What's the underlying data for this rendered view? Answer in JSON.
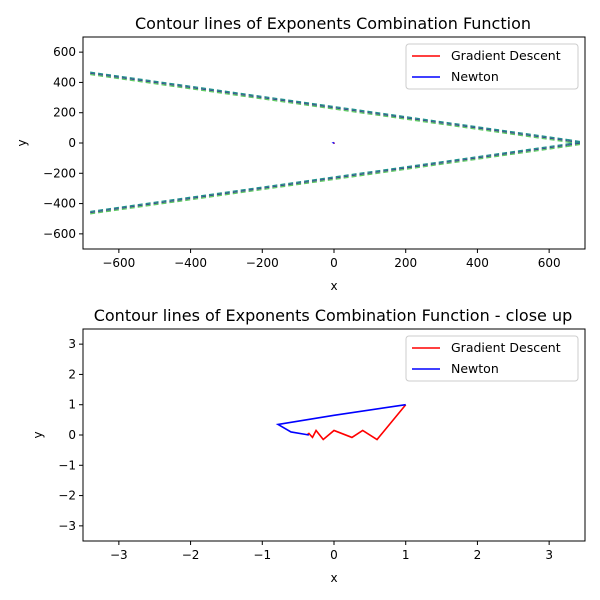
{
  "chart_data": [
    {
      "type": "line",
      "title": "Contour lines of Exponents Combination Function",
      "xlabel": "x",
      "ylabel": "y",
      "xlim": [
        -700,
        700
      ],
      "ylim": [
        -700,
        700
      ],
      "xticks": [
        -600,
        -400,
        -200,
        0,
        200,
        400,
        600
      ],
      "yticks": [
        -600,
        -400,
        -200,
        0,
        200,
        400,
        600
      ],
      "legend_position": "top-right",
      "contours": {
        "colors": [
          "#21918c",
          "#3b528b",
          "#5ec962"
        ],
        "style": "dashed",
        "lines": [
          [
            [
              -680,
              460
            ],
            [
              650,
              15
            ]
          ],
          [
            [
              -680,
              -460
            ],
            [
              650,
              -15
            ]
          ],
          [
            [
              650,
              15
            ],
            [
              690,
              0
            ]
          ],
          [
            [
              650,
              -15
            ],
            [
              690,
              0
            ]
          ]
        ]
      },
      "series": [
        {
          "name": "Gradient Descent",
          "color": "#ff0000",
          "x": [
            1.0,
            0.6,
            0.4,
            0.25,
            0.0,
            -0.15,
            -0.25,
            -0.32,
            -0.38
          ],
          "y": [
            1.0,
            -0.15,
            0.15,
            -0.08,
            0.15,
            -0.15,
            0.15,
            -0.05,
            0.02
          ]
        },
        {
          "name": "Newton",
          "color": "#0000ff",
          "x": [
            1.0,
            0.0,
            -0.75,
            -0.6,
            -0.4,
            -0.35
          ],
          "y": [
            1.0,
            0.65,
            0.35,
            0.1,
            0.02,
            0.0
          ]
        }
      ]
    },
    {
      "type": "line",
      "title": "Contour lines of Exponents Combination Function - close up",
      "xlabel": "x",
      "ylabel": "y",
      "xlim": [
        -3.5,
        3.5
      ],
      "ylim": [
        -3.5,
        3.5
      ],
      "xticks": [
        -3,
        -2,
        -1,
        0,
        1,
        2,
        3
      ],
      "yticks": [
        -3,
        -2,
        -1,
        0,
        1,
        2,
        3
      ],
      "legend_position": "top-right",
      "series": [
        {
          "name": "Gradient Descent",
          "color": "#ff0000",
          "x": [
            1.0,
            0.6,
            0.4,
            0.25,
            0.0,
            -0.15,
            -0.25,
            -0.3,
            -0.35,
            -0.38
          ],
          "y": [
            1.0,
            -0.15,
            0.15,
            -0.08,
            0.15,
            -0.15,
            0.15,
            -0.08,
            0.05,
            0.0
          ]
        },
        {
          "name": "Newton",
          "color": "#0000ff",
          "x": [
            1.0,
            0.0,
            -0.78,
            -0.6,
            -0.4,
            -0.35
          ],
          "y": [
            1.0,
            0.65,
            0.35,
            0.1,
            0.02,
            0.0
          ]
        }
      ]
    }
  ]
}
